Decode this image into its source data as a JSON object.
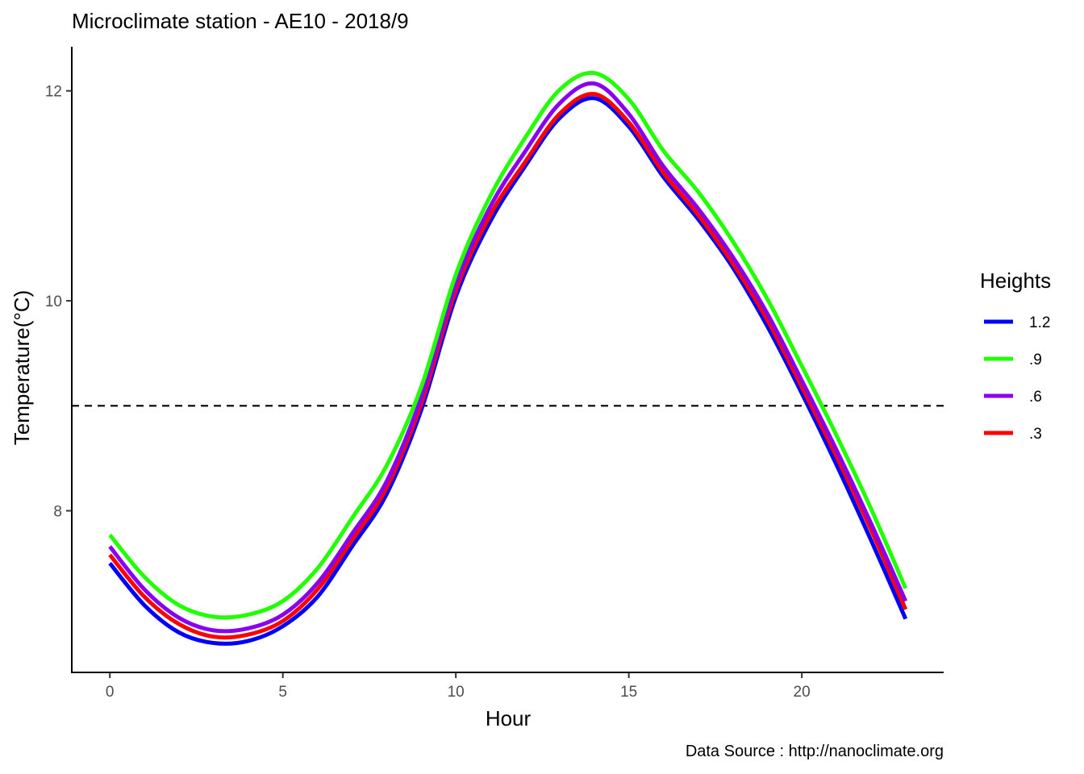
{
  "chart_data": {
    "type": "line",
    "title": "Microclimate station -  AE10 - 2018/9",
    "xlabel": "Hour",
    "ylabel": "Temperature(°C)",
    "caption": "Data Source : http://nanoclimate.org",
    "xlim": [
      -1.1,
      24.1
    ],
    "ylim": [
      6.46,
      12.42
    ],
    "x_ticks": [
      0,
      5,
      10,
      15,
      20
    ],
    "y_ticks": [
      8,
      10,
      12
    ],
    "reference_line": {
      "y": 9,
      "style": "dashed",
      "color": "#000000"
    },
    "grid": false,
    "legend": {
      "title": "Heights",
      "position": "right"
    },
    "x": [
      0,
      1,
      2,
      3,
      4,
      5,
      6,
      7,
      8,
      9,
      10,
      11,
      12,
      13,
      14,
      15,
      16,
      17,
      18,
      19,
      20,
      21,
      22,
      23
    ],
    "series": [
      {
        "name": ".3",
        "color": "#ff0000",
        "values": [
          7.58,
          7.18,
          6.92,
          6.8,
          6.82,
          6.95,
          7.25,
          7.72,
          8.22,
          9.02,
          10.1,
          10.82,
          11.32,
          11.78,
          11.97,
          11.7,
          11.22,
          10.82,
          10.36,
          9.82,
          9.18,
          8.52,
          7.82,
          7.06
        ]
      },
      {
        "name": ".6",
        "color": "#8800ee",
        "values": [
          7.66,
          7.25,
          6.98,
          6.86,
          6.88,
          7.01,
          7.31,
          7.78,
          8.28,
          9.08,
          10.16,
          10.9,
          11.42,
          11.88,
          12.07,
          11.78,
          11.28,
          10.88,
          10.42,
          9.88,
          9.24,
          8.58,
          7.88,
          7.14
        ]
      },
      {
        "name": ".9",
        "color": "#22ff00",
        "values": [
          7.77,
          7.37,
          7.1,
          6.99,
          7.01,
          7.14,
          7.45,
          7.93,
          8.43,
          9.18,
          10.25,
          11.0,
          11.55,
          12.01,
          12.17,
          11.92,
          11.43,
          11.04,
          10.57,
          10.02,
          9.38,
          8.72,
          8.02,
          7.26
        ]
      },
      {
        "name": "1.2",
        "color": "#0000ff",
        "values": [
          7.5,
          7.1,
          6.84,
          6.74,
          6.76,
          6.9,
          7.18,
          7.66,
          8.16,
          8.96,
          10.04,
          10.76,
          11.28,
          11.74,
          11.93,
          11.66,
          11.18,
          10.78,
          10.32,
          9.76,
          9.12,
          8.44,
          7.72,
          6.97
        ]
      }
    ],
    "legend_order": [
      "1.2",
      ".9",
      ".6",
      ".3"
    ],
    "draw_order": [
      "1.2",
      ".3",
      ".6",
      ".9"
    ]
  }
}
